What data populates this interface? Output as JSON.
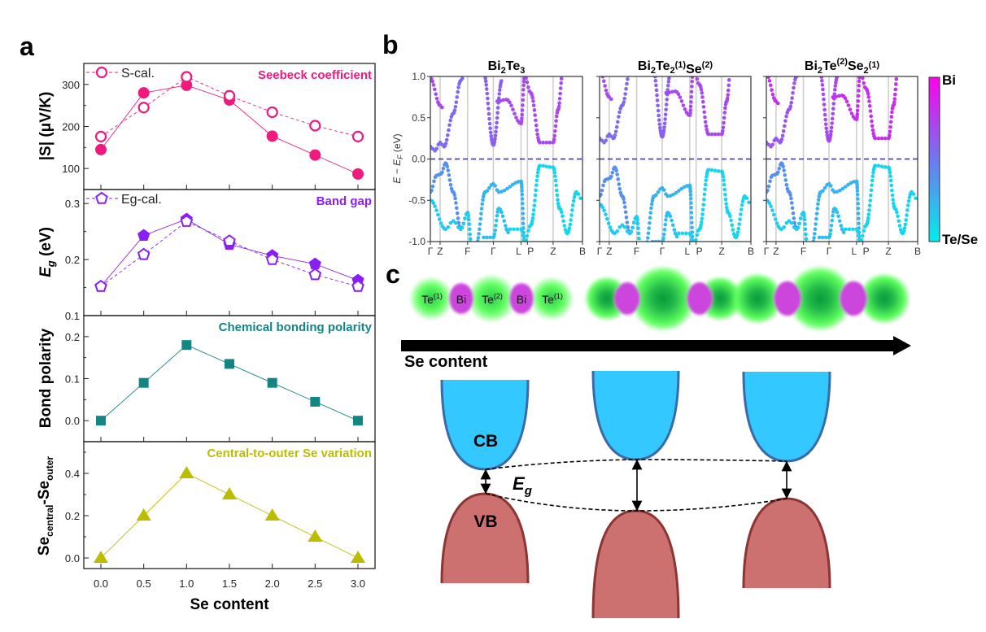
{
  "figure": {
    "panel_labels": [
      "a",
      "b",
      "c"
    ]
  },
  "chart_data": [
    {
      "type": "line",
      "panel": "a",
      "title": "Seebeck coefficient",
      "title_color": "#f0197d",
      "ylabel": "|S| (μV/K)",
      "xlabel": "",
      "x": [
        0.0,
        0.5,
        1.0,
        1.5,
        2.0,
        2.5,
        3.0
      ],
      "ylim": [
        50,
        350
      ],
      "yticks": [
        "300",
        "200",
        "100"
      ],
      "ytick_values": [
        300,
        200,
        100
      ],
      "series": [
        {
          "values": [
            145,
            280,
            298,
            263,
            177,
            132,
            87
          ],
          "marker": "filled-circle"
        },
        {
          "name": "S-cal.",
          "values": [
            176,
            245,
            318,
            273,
            234,
            202,
            176
          ],
          "marker": "open-circle",
          "dashed": true
        }
      ]
    },
    {
      "type": "line",
      "panel": "a",
      "title": "Band gap",
      "title_color": "#8a1ff5",
      "ylabel_main": "E",
      "ylabel_sub": "g",
      "ylabel_unit": " (eV)",
      "x": [
        0.0,
        0.5,
        1.0,
        1.5,
        2.0,
        2.5,
        3.0
      ],
      "ylim": [
        0.1,
        0.325
      ],
      "yticks": [
        "0.3",
        "0.2",
        "0.1"
      ],
      "ytick_values": [
        0.3,
        0.2,
        0.1
      ],
      "series": [
        {
          "values": [
            0.152,
            0.243,
            0.272,
            0.227,
            0.207,
            0.192,
            0.163
          ],
          "marker": "filled-pentagon"
        },
        {
          "name": "Eg-cal.",
          "values": [
            0.152,
            0.209,
            0.268,
            0.233,
            0.2,
            0.173,
            0.152
          ],
          "marker": "open-pentagon",
          "dashed": true
        }
      ]
    },
    {
      "type": "line",
      "panel": "a",
      "title": "Chemical bonding polarity",
      "title_color": "#138585",
      "ylabel": "Bond polarity",
      "x": [
        0.0,
        0.5,
        1.0,
        1.5,
        2.0,
        2.5,
        3.0
      ],
      "ylim": [
        -0.05,
        0.25
      ],
      "yticks": [
        "0.2",
        "0.1",
        "0.0"
      ],
      "ytick_values": [
        0.2,
        0.1,
        0.0
      ],
      "series": [
        {
          "values": [
            0.0,
            0.09,
            0.18,
            0.135,
            0.09,
            0.045,
            0.0
          ],
          "marker": "filled-square"
        }
      ]
    },
    {
      "type": "line",
      "panel": "a",
      "title": "Central-to-outer Se variation",
      "title_color": "#bdbd00",
      "ylabel_a": "Se",
      "ylabel_a_sub": "central",
      "ylabel_b": "-Se",
      "ylabel_b_sub": "outer",
      "xlabel": "Se content",
      "x": [
        0.0,
        0.5,
        1.0,
        1.5,
        2.0,
        2.5,
        3.0
      ],
      "xticks": [
        "0.0",
        "0.5",
        "1.0",
        "1.5",
        "2.0",
        "2.5",
        "3.0"
      ],
      "ylim": [
        -0.05,
        0.55
      ],
      "yticks": [
        "0.4",
        "0.2",
        "0.0"
      ],
      "ytick_values": [
        0.4,
        0.2,
        0.0
      ],
      "series": [
        {
          "values": [
            0.0,
            0.2,
            0.4,
            0.3,
            0.2,
            0.1,
            0.0
          ],
          "marker": "filled-triangle"
        }
      ]
    },
    {
      "type": "scatter",
      "panel": "b",
      "ylabel": "E − E_F (eV)",
      "ylabel_parts": [
        "E − E",
        "F",
        " (eV)"
      ],
      "ylim": [
        -1.0,
        1.0
      ],
      "yticks": [
        "1.0",
        "0.5",
        "0.0",
        "-0.5",
        "-1.0"
      ],
      "ytick_values": [
        1.0,
        0.5,
        0.0,
        -0.5,
        -1.0
      ],
      "kpath": [
        "Γ",
        "Z",
        "F",
        "Γ",
        "L",
        "P",
        "Z",
        "B"
      ],
      "fermi_level": 0.0,
      "fermi_color": "#3a1fe0",
      "subplots": [
        {
          "title_parts": [
            {
              "t": "Bi"
            },
            {
              "sub": "2"
            },
            {
              "t": "Te"
            },
            {
              "sub": "3"
            }
          ]
        },
        {
          "title_parts": [
            {
              "t": "Bi"
            },
            {
              "sub": "2"
            },
            {
              "t": "Te"
            },
            {
              "sub": "2"
            },
            {
              "sup": "(1)"
            },
            {
              "t": "Se"
            },
            {
              "sup": "(2)"
            }
          ]
        },
        {
          "title_parts": [
            {
              "t": "Bi"
            },
            {
              "sub": "2"
            },
            {
              "t": "Te"
            },
            {
              "sup": "(2)"
            },
            {
              "t": "Se"
            },
            {
              "sub": "2"
            },
            {
              "sup": "(1)"
            }
          ]
        }
      ],
      "colorbar": {
        "top_label": "Bi",
        "bottom_label": "Te/Se",
        "top_color": "#ff00ee",
        "mid_color": "#6e78f0",
        "bottom_color": "#00eeee"
      }
    }
  ],
  "panel_c": {
    "atom_labels": [
      {
        "t": "Te",
        "sup": "(1)"
      },
      {
        "t": "Bi",
        "sup": ""
      },
      {
        "t": "Te",
        "sup": "(2)"
      },
      {
        "t": "Bi",
        "sup": ""
      },
      {
        "t": "Te",
        "sup": "(1)"
      }
    ],
    "arrow_label": "Se content",
    "cb_label": "CB",
    "vb_label": "VB",
    "gap_label_main": "E",
    "gap_label_sub": "g",
    "cb_color": "#33c8ff",
    "vb_color": "#cd7070",
    "te_se_color": "#5eff5e",
    "bi_color": "#cc44dd"
  }
}
